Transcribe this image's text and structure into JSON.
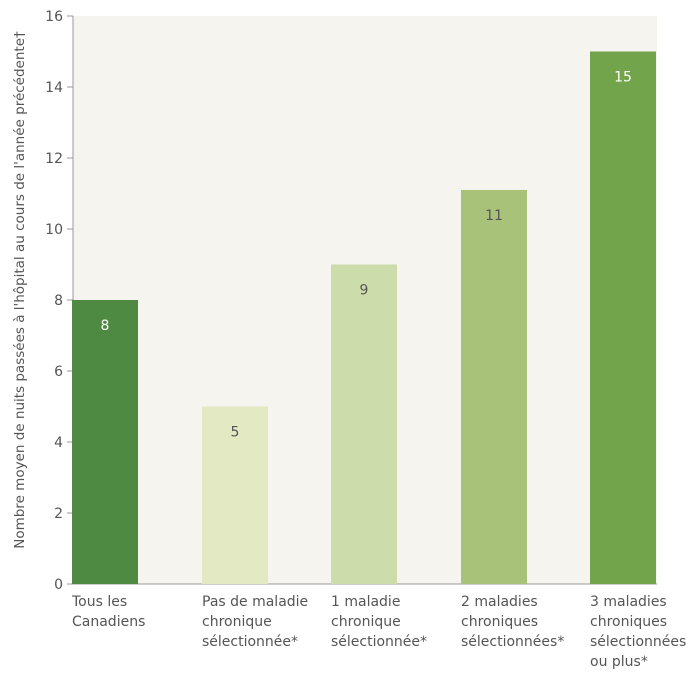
{
  "chart_data": {
    "type": "bar",
    "ylabel": "Nombre moyen de nuits passées à l'hôpital au cours de l'année précédente†",
    "ylim": [
      0,
      16
    ],
    "yticks": [
      0,
      2,
      4,
      6,
      8,
      10,
      12,
      14,
      16
    ],
    "categories": [
      [
        "Tous les",
        "Canadiens"
      ],
      [
        "Pas de maladie",
        "chronique",
        "sélectionnée*"
      ],
      [
        "1 maladie",
        "chronique",
        "sélectionnée*"
      ],
      [
        "2 maladies",
        "chroniques",
        "sélectionnées*"
      ],
      [
        "3 maladies",
        "chroniques",
        "sélectionnées",
        "ou plus*"
      ]
    ],
    "values": [
      8,
      5,
      9,
      11.1,
      15
    ],
    "data_labels": [
      "8",
      "5",
      "9",
      "11",
      "15"
    ],
    "colors": [
      "#4e8a42",
      "#e3e9c3",
      "#ccdcab",
      "#a8c27a",
      "#72a44c"
    ],
    "label_colors": [
      "#ffffff",
      "#555555",
      "#555555",
      "#555555",
      "#ffffff"
    ],
    "plot_background": "#f5f4ee",
    "grid": false
  }
}
